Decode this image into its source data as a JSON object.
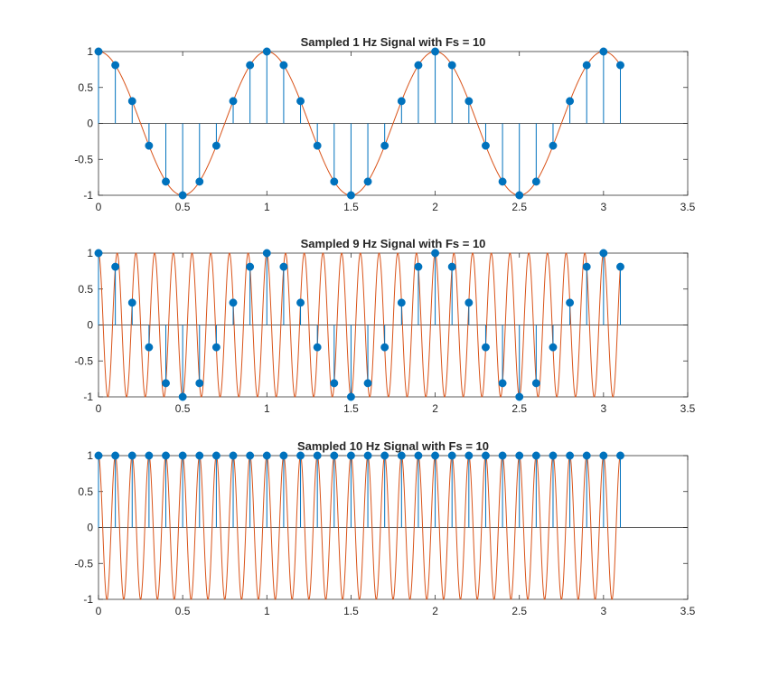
{
  "colors": {
    "stem": "#0072BD",
    "marker": "#0072BD",
    "continuous": "#D95319",
    "axes": "#262626",
    "background": "#ffffff"
  },
  "chart_data": [
    {
      "type": "line",
      "title": "Sampled 1 Hz Signal with Fs = 10",
      "signal_frequency_hz": 1,
      "sampling_rate": 10,
      "xlabel": "",
      "ylabel": "",
      "xlim": [
        0,
        3.5
      ],
      "ylim": [
        -1,
        1
      ],
      "x_ticks": [
        "0",
        "0.5",
        "1",
        "1.5",
        "2",
        "2.5",
        "3",
        "3.5"
      ],
      "y_ticks": [
        "1",
        "0.5",
        "0",
        "-0.5",
        "-1"
      ],
      "grid": false,
      "legend": "none",
      "series": [
        {
          "style": "stem",
          "x": [
            0,
            0.1,
            0.2,
            0.3,
            0.4,
            0.5,
            0.6,
            0.7,
            0.8,
            0.9,
            1.0,
            1.1,
            1.2,
            1.3,
            1.4,
            1.5,
            1.6,
            1.7,
            1.8,
            1.9,
            2.0,
            2.1,
            2.2,
            2.3,
            2.4,
            2.5,
            2.6,
            2.7,
            2.8,
            2.9,
            3.0,
            3.1
          ],
          "values": [
            1,
            0.81,
            0.31,
            -0.31,
            -0.81,
            -1,
            -0.81,
            -0.31,
            0.31,
            0.81,
            1,
            0.81,
            0.31,
            -0.31,
            -0.81,
            -1,
            -0.81,
            -0.31,
            0.31,
            0.81,
            1,
            0.81,
            0.31,
            -0.31,
            -0.81,
            -1,
            -0.81,
            -0.31,
            0.31,
            0.81,
            1,
            0.81
          ]
        },
        {
          "style": "line",
          "function": "cos",
          "frequency_hz": 1,
          "x_range": [
            0,
            3.1
          ]
        }
      ]
    },
    {
      "type": "line",
      "title": "Sampled 9 Hz Signal with Fs = 10",
      "signal_frequency_hz": 9,
      "sampling_rate": 10,
      "xlabel": "",
      "ylabel": "",
      "xlim": [
        0,
        3.5
      ],
      "ylim": [
        -1,
        1
      ],
      "x_ticks": [
        "0",
        "0.5",
        "1",
        "1.5",
        "2",
        "2.5",
        "3",
        "3.5"
      ],
      "y_ticks": [
        "1",
        "0.5",
        "0",
        "-0.5",
        "-1"
      ],
      "grid": false,
      "legend": "none",
      "series": [
        {
          "style": "stem",
          "x": [
            0,
            0.1,
            0.2,
            0.3,
            0.4,
            0.5,
            0.6,
            0.7,
            0.8,
            0.9,
            1.0,
            1.1,
            1.2,
            1.3,
            1.4,
            1.5,
            1.6,
            1.7,
            1.8,
            1.9,
            2.0,
            2.1,
            2.2,
            2.3,
            2.4,
            2.5,
            2.6,
            2.7,
            2.8,
            2.9,
            3.0,
            3.1
          ],
          "values": [
            1,
            0.81,
            0.31,
            -0.31,
            -0.81,
            -1,
            -0.81,
            -0.31,
            0.31,
            0.81,
            1,
            0.81,
            0.31,
            -0.31,
            -0.81,
            -1,
            -0.81,
            -0.31,
            0.31,
            0.81,
            1,
            0.81,
            0.31,
            -0.31,
            -0.81,
            -1,
            -0.81,
            -0.31,
            0.31,
            0.81,
            1,
            0.81
          ]
        },
        {
          "style": "line",
          "function": "cos",
          "frequency_hz": 9,
          "x_range": [
            0,
            3.1
          ]
        }
      ]
    },
    {
      "type": "line",
      "title": "Sampled 10 Hz Signal with Fs = 10",
      "signal_frequency_hz": 10,
      "sampling_rate": 10,
      "xlabel": "",
      "ylabel": "",
      "xlim": [
        0,
        3.5
      ],
      "ylim": [
        -1,
        1
      ],
      "x_ticks": [
        "0",
        "0.5",
        "1",
        "1.5",
        "2",
        "2.5",
        "3",
        "3.5"
      ],
      "y_ticks": [
        "1",
        "0.5",
        "0",
        "-0.5",
        "-1"
      ],
      "grid": false,
      "legend": "none",
      "series": [
        {
          "style": "stem",
          "x": [
            0,
            0.1,
            0.2,
            0.3,
            0.4,
            0.5,
            0.6,
            0.7,
            0.8,
            0.9,
            1.0,
            1.1,
            1.2,
            1.3,
            1.4,
            1.5,
            1.6,
            1.7,
            1.8,
            1.9,
            2.0,
            2.1,
            2.2,
            2.3,
            2.4,
            2.5,
            2.6,
            2.7,
            2.8,
            2.9,
            3.0,
            3.1
          ],
          "values": [
            1,
            1,
            1,
            1,
            1,
            1,
            1,
            1,
            1,
            1,
            1,
            1,
            1,
            1,
            1,
            1,
            1,
            1,
            1,
            1,
            1,
            1,
            1,
            1,
            1,
            1,
            1,
            1,
            1,
            1,
            1,
            1
          ]
        },
        {
          "style": "line",
          "function": "cos",
          "frequency_hz": 10,
          "x_range": [
            0,
            3.1
          ]
        }
      ]
    }
  ]
}
